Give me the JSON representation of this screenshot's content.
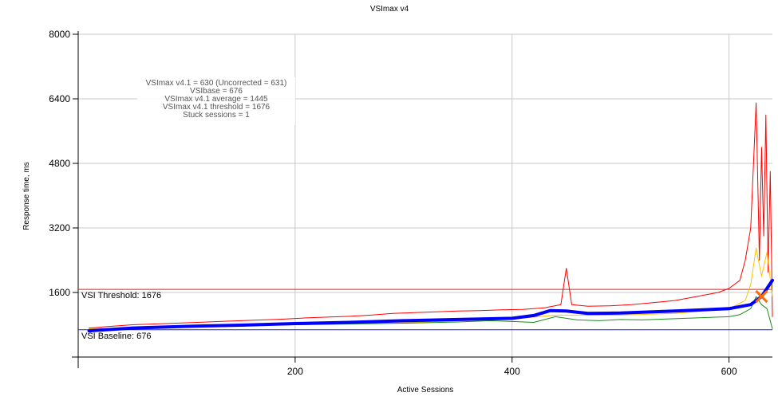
{
  "chart_data": {
    "type": "line",
    "title": "VSImax v4",
    "xlabel": "Active Sessions",
    "ylabel": "Response time, ms",
    "xlim": [
      0,
      640
    ],
    "ylim": [
      0,
      8000
    ],
    "x_ticks": [
      200,
      400,
      600
    ],
    "x_tick_labels": [
      "200",
      "400",
      "600"
    ],
    "y_ticks": [
      1600,
      3200,
      4800,
      6400,
      8000
    ],
    "y_tick_labels": [
      "1600",
      "3200",
      "4800",
      "6400",
      "8000"
    ],
    "grid": true,
    "annotations": [
      "VSImax v4.1 = 630 (Uncorrected = 631)",
      "VSIbase = 676",
      "VSImax v4.1 average = 1445",
      "VSImax v4.1 threshold = 1676",
      "Stuck sessions = 1"
    ],
    "threshold": {
      "label": "VSI Threshold: 1676",
      "value": 1676,
      "color": "#e41e1e"
    },
    "baseline": {
      "label": "VSI Baseline: 676",
      "value": 676,
      "color": "#1a1aff"
    },
    "vsimax_marker": {
      "x": 630,
      "y": 1500,
      "color": "#ff6a00"
    },
    "series": [
      {
        "color": "#ff0000",
        "x": [
          10,
          30,
          50,
          70,
          90,
          110,
          130,
          150,
          170,
          190,
          210,
          230,
          250,
          270,
          290,
          310,
          330,
          350,
          370,
          390,
          410,
          430,
          445,
          450,
          455,
          470,
          490,
          510,
          530,
          550,
          570,
          590,
          600,
          610,
          615,
          620,
          625,
          628,
          630,
          632,
          634,
          636,
          638,
          640
        ],
        "values": [
          720,
          760,
          800,
          820,
          840,
          860,
          880,
          900,
          920,
          940,
          970,
          990,
          1010,
          1040,
          1080,
          1100,
          1120,
          1140,
          1150,
          1170,
          1180,
          1220,
          1300,
          2200,
          1300,
          1260,
          1270,
          1300,
          1350,
          1400,
          1500,
          1600,
          1700,
          1900,
          2400,
          3200,
          6300,
          2400,
          5200,
          3000,
          6000,
          2100,
          4600,
          1000
        ]
      },
      {
        "color": "#ffc000",
        "x": [
          10,
          100,
          200,
          300,
          400,
          440,
          500,
          550,
          600,
          615,
          620,
          625,
          630,
          635,
          640
        ],
        "values": [
          700,
          740,
          800,
          850,
          940,
          1040,
          1040,
          1080,
          1200,
          1400,
          1800,
          2700,
          2000,
          2600,
          1500
        ]
      },
      {
        "color": "#1a8c1a",
        "x": [
          10,
          50,
          100,
          150,
          200,
          250,
          300,
          350,
          380,
          400,
          420,
          440,
          460,
          480,
          500,
          520,
          540,
          560,
          580,
          600,
          610,
          620,
          625,
          630,
          635,
          640
        ],
        "values": [
          680,
          720,
          750,
          780,
          800,
          820,
          840,
          870,
          900,
          880,
          860,
          1000,
          920,
          900,
          930,
          920,
          940,
          960,
          980,
          1000,
          1050,
          1200,
          1500,
          1300,
          1200,
          700
        ]
      },
      {
        "color": "#0000ff",
        "x": [
          10,
          50,
          100,
          150,
          200,
          250,
          300,
          350,
          400,
          420,
          435,
          450,
          470,
          500,
          550,
          600,
          620,
          630,
          635,
          640
        ],
        "values": [
          650,
          720,
          760,
          790,
          830,
          860,
          900,
          930,
          960,
          1030,
          1150,
          1140,
          1080,
          1090,
          1140,
          1200,
          1300,
          1500,
          1700,
          1900
        ]
      }
    ]
  }
}
